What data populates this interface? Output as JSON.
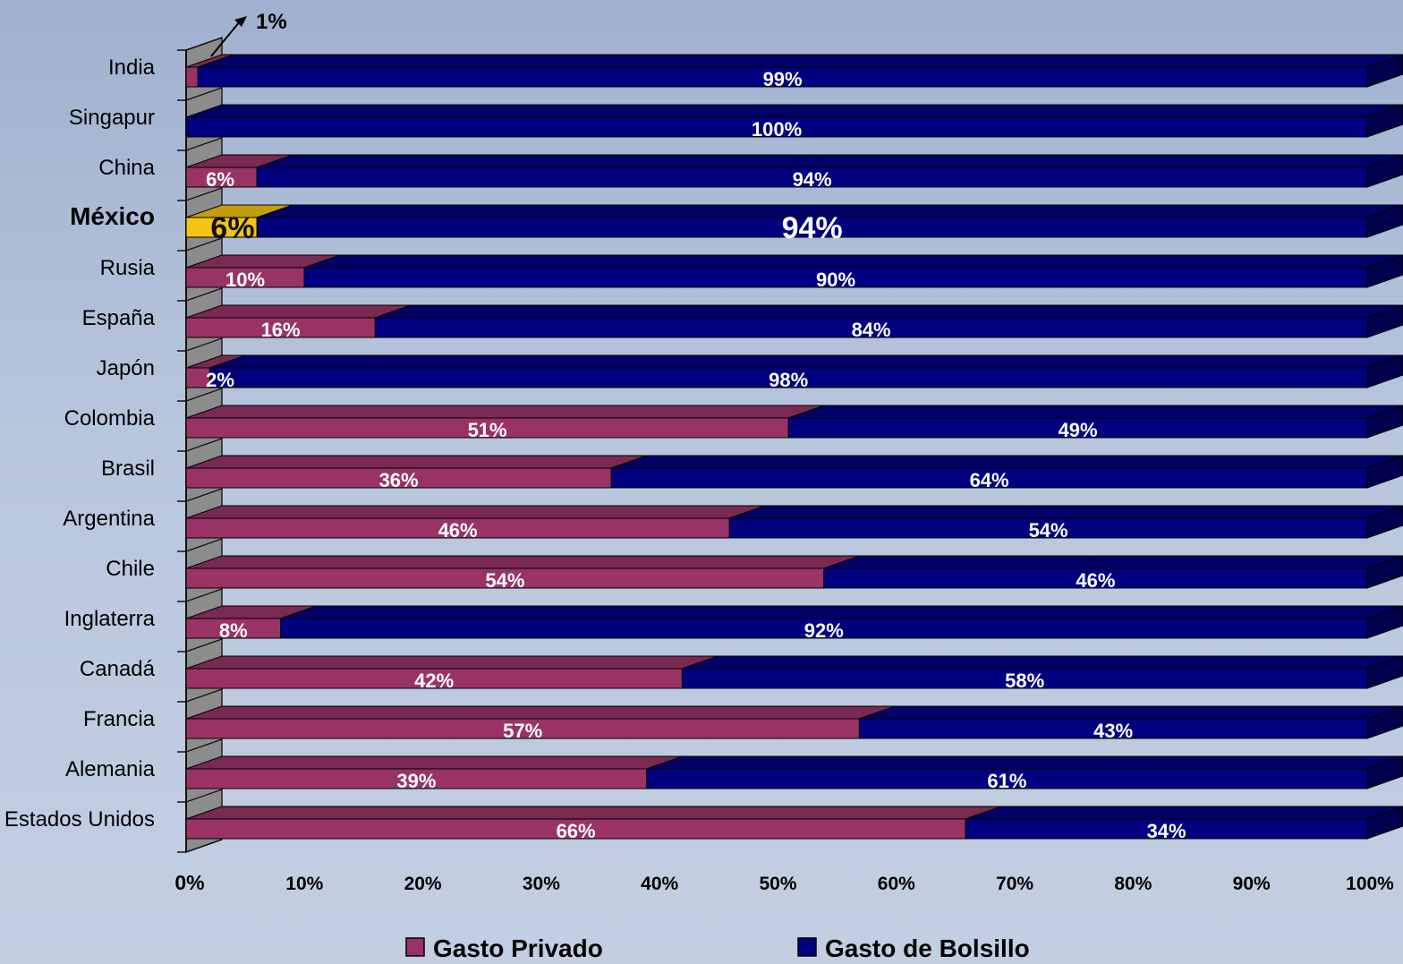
{
  "chart_data": {
    "type": "bar",
    "orientation": "horizontal",
    "stacked": "100%",
    "categories": [
      "India",
      "Singapur",
      "China",
      "México",
      "Rusia",
      "España",
      "Japón",
      "Colombia",
      "Brasil",
      "Argentina",
      "Chile",
      "Inglaterra",
      "Canadá",
      "Francia",
      "Alemania",
      "Estados Unidos"
    ],
    "highlight_category": "México",
    "series": [
      {
        "name": "Gasto Privado",
        "color": "#993366",
        "highlight_color": "#f2c417",
        "values": [
          1,
          0,
          6,
          6,
          10,
          16,
          2,
          51,
          36,
          46,
          54,
          8,
          42,
          57,
          39,
          66
        ],
        "labels": [
          "",
          "",
          "6%",
          "6%",
          "10%",
          "16%",
          "2%",
          "51%",
          "36%",
          "46%",
          "54%",
          "8%",
          "42%",
          "57%",
          "39%",
          "66%"
        ]
      },
      {
        "name": "Gasto de Bolsillo",
        "color": "#000080",
        "values": [
          99,
          100,
          94,
          94,
          90,
          84,
          98,
          49,
          64,
          54,
          46,
          92,
          58,
          43,
          61,
          34
        ],
        "labels": [
          "99%",
          "100%",
          "94%",
          "94%",
          "90%",
          "84%",
          "98%",
          "49%",
          "64%",
          "54%",
          "46%",
          "92%",
          "58%",
          "43%",
          "61%",
          "34%"
        ]
      }
    ],
    "xlim": [
      0,
      100
    ],
    "x_ticks": [
      "0%",
      "10%",
      "20%",
      "30%",
      "40%",
      "50%",
      "60%",
      "70%",
      "80%",
      "90%",
      "100%"
    ],
    "annotations": [
      {
        "text": "1%",
        "target": "India"
      }
    ],
    "legend": {
      "position": "bottom"
    },
    "three_d": true
  }
}
